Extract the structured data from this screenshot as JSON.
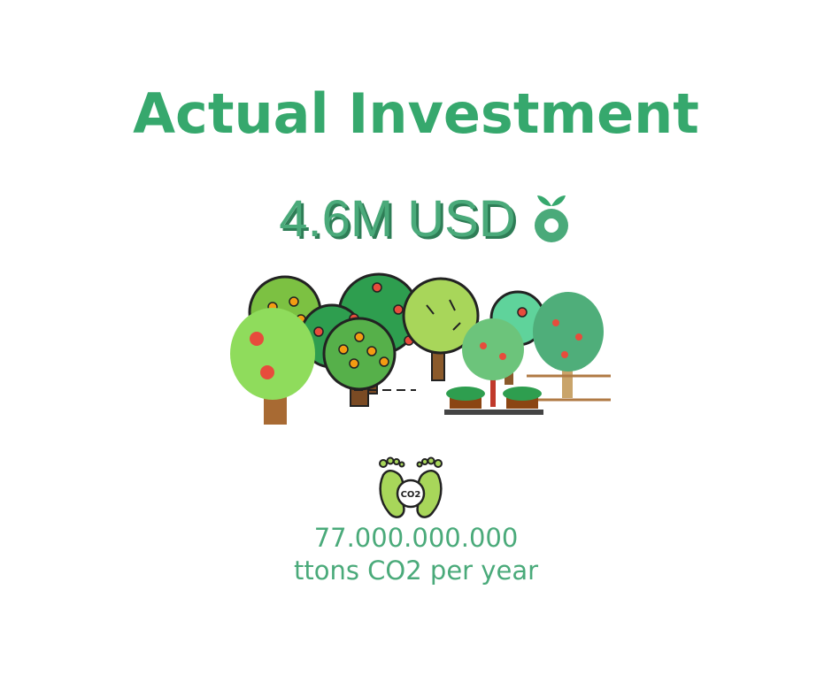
{
  "title": "Actual Investment",
  "amount": "4.6M USD",
  "stat": {
    "value": "77.000.000.000",
    "unit": "ttons CO2 per year"
  },
  "icons": {
    "logo": "fruit-sprout-icon",
    "illustration": "orchard-trees-icon",
    "co2": "co2-footprint-icon",
    "co2_label": "CO2"
  },
  "colors": {
    "primary_green": "#36a86d",
    "text_green": "#4aaa7a",
    "shadow_green": "#2e7d56"
  }
}
